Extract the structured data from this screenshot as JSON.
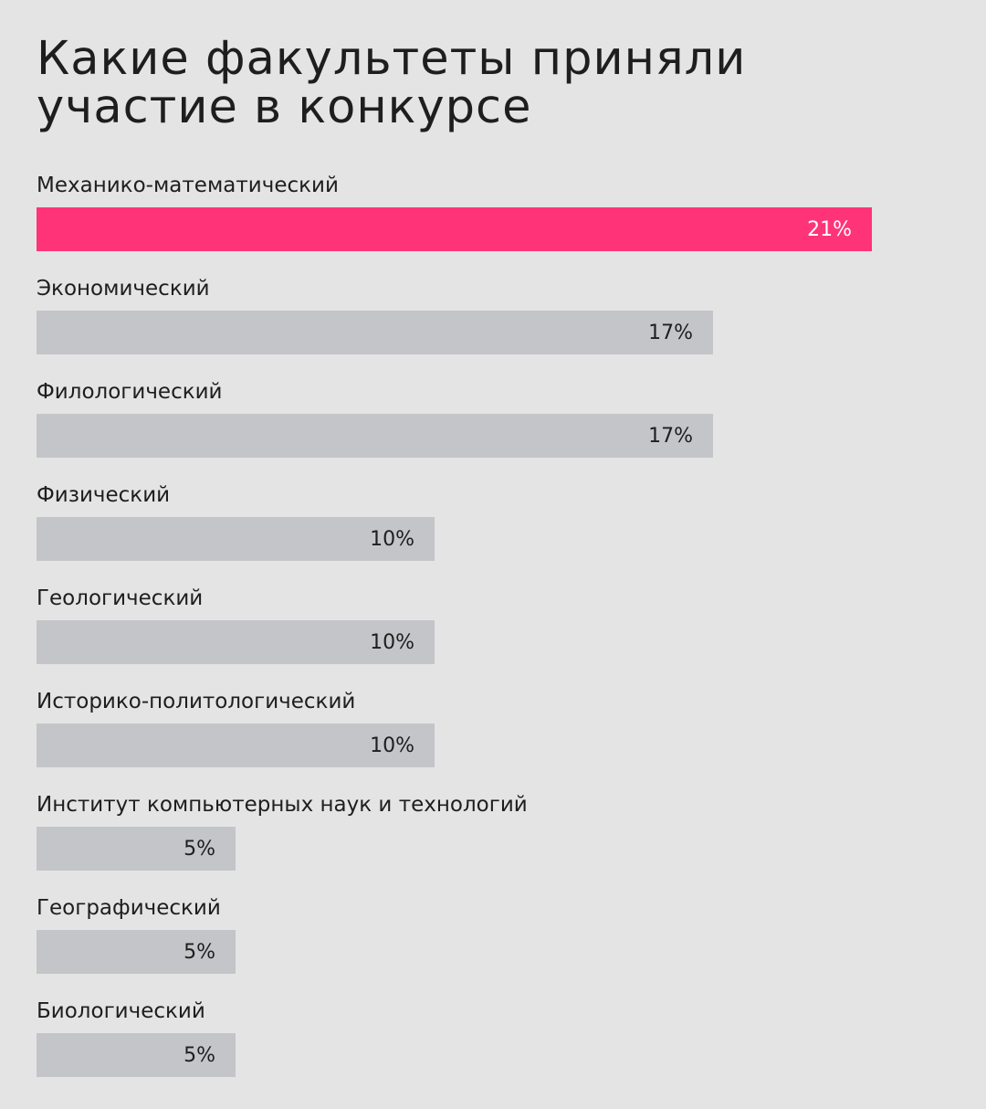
{
  "title": "Какие факультеты приняли участие в конкурсе",
  "colors": {
    "background": "#e4e4e4",
    "bar_default": "#c4c5c8",
    "bar_highlight": "#ff3478",
    "text": "#1e1e1e",
    "highlight_text": "#ffffff"
  },
  "chart_data": {
    "type": "bar",
    "orientation": "horizontal",
    "title": "Какие факультеты приняли участие в конкурсе",
    "xlabel": "",
    "ylabel": "",
    "value_unit": "%",
    "highlight_index": 0,
    "categories": [
      "Механико-математический",
      "Экономический",
      "Филологический",
      "Физический",
      "Геологический",
      "Историко-политологический",
      "Институт компьютерных наук и технологий",
      "Географический",
      "Биологический"
    ],
    "values": [
      21,
      17,
      17,
      10,
      10,
      10,
      5,
      5,
      5
    ],
    "value_labels": [
      "21%",
      "17%",
      "17%",
      "10%",
      "10%",
      "10%",
      "5%",
      "5%",
      "5%"
    ],
    "grid": false,
    "legend": "none"
  }
}
